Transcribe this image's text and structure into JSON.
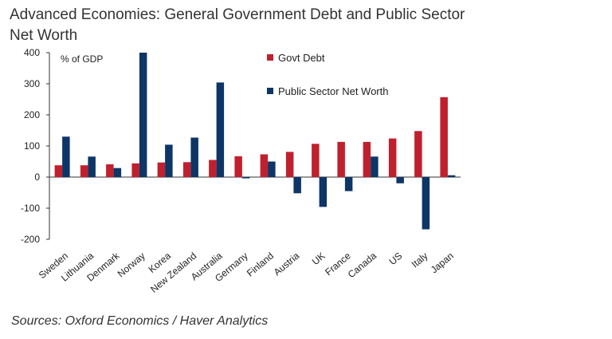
{
  "title": "Advanced Economies: General Government Debt and Public Sector Net Worth",
  "source": "Sources: Oxford Economics / Haver Analytics",
  "chart_data": {
    "type": "bar",
    "title": "Advanced Economies: General Government Debt and Public Sector Net Worth",
    "ylabel": "% of GDP",
    "ylim": [
      -200,
      400
    ],
    "yticks": [
      400,
      300,
      200,
      100,
      0,
      -100,
      -200
    ],
    "categories": [
      "Sweden",
      "Lithuania",
      "Denmark",
      "Norway",
      "Korea",
      "New Zealand",
      "Australia",
      "Germany",
      "Finland",
      "Austria",
      "UK",
      "France",
      "Canada",
      "US",
      "Italy",
      "Japan"
    ],
    "series": [
      {
        "name": "Govt Debt",
        "color": "#c0202e",
        "values": [
          38,
          38,
          41,
          44,
          47,
          48,
          55,
          67,
          73,
          81,
          107,
          113,
          113,
          124,
          148,
          257
        ]
      },
      {
        "name": "Public Sector Net Worth",
        "color": "#0d3566",
        "values": [
          130,
          66,
          29,
          400,
          104,
          127,
          304,
          -4,
          50,
          -52,
          -96,
          -45,
          66,
          -20,
          -168,
          6
        ]
      }
    ],
    "legend_position": "top-right",
    "grid": false
  }
}
